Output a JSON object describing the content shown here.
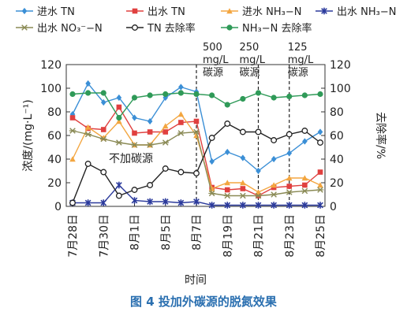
{
  "chart_data": {
    "type": "line",
    "x_labels": [
      "7月28日",
      "7月30日",
      "8月1日",
      "8月5日",
      "8月7日",
      "8月19日",
      "8月21日",
      "8月23日",
      "8月25日"
    ],
    "x_tick_positions": [
      0,
      2,
      4,
      6,
      8,
      10,
      12,
      14,
      16
    ],
    "y_left": {
      "label": "浓度/(mg·L⁻¹)",
      "ylim": [
        0,
        120
      ],
      "ticks": [
        0,
        20,
        40,
        60,
        80,
        100,
        120
      ]
    },
    "y_right": {
      "label": "去除率/%",
      "ylim": [
        0,
        120
      ],
      "ticks": [
        0,
        20,
        40,
        60,
        80,
        100,
        120
      ]
    },
    "xlabel": "时间",
    "legend_position": "top",
    "series": [
      {
        "name": "进水 TN",
        "axis": "left",
        "color": "#3b8fd6",
        "marker": "diamond",
        "x": [
          0,
          1,
          2,
          3,
          4,
          5,
          6,
          7,
          8,
          9,
          10,
          11,
          12,
          13,
          14,
          15,
          16
        ],
        "y": [
          78,
          104,
          88,
          92,
          75,
          72,
          92,
          101,
          97,
          38,
          46,
          41,
          30,
          40,
          45,
          55,
          63
        ]
      },
      {
        "name": "出水 TN",
        "axis": "left",
        "color": "#e0403f",
        "marker": "square",
        "x": [
          0,
          1,
          2,
          3,
          4,
          5,
          6,
          7,
          8,
          9,
          10,
          11,
          12,
          13,
          14,
          15,
          16
        ],
        "y": [
          75,
          66,
          65,
          84,
          62,
          63,
          63,
          71,
          72,
          16,
          14,
          15,
          9,
          16,
          17,
          18,
          29
        ]
      },
      {
        "name": "进水 NH₃−N",
        "axis": "left",
        "color": "#f3a640",
        "marker": "triangle",
        "x": [
          0,
          1,
          2,
          3,
          4,
          5,
          6,
          7,
          8,
          9,
          10,
          11,
          12,
          13,
          14,
          15,
          16
        ],
        "y": [
          40,
          67,
          58,
          72,
          52,
          52,
          68,
          78,
          60,
          15,
          20,
          20,
          12,
          18,
          24,
          24,
          18
        ]
      },
      {
        "name": "出水 NH₃−N",
        "axis": "left",
        "color": "#2b3a9c",
        "marker": "star",
        "x": [
          0,
          1,
          2,
          3,
          4,
          5,
          6,
          7,
          8,
          9,
          10,
          11,
          12,
          13,
          14,
          15,
          16
        ],
        "y": [
          3,
          3,
          3,
          18,
          5,
          4,
          4,
          3,
          4,
          1,
          1,
          1,
          1,
          1,
          1,
          1,
          1
        ]
      },
      {
        "name": "出水 NO₃⁻−N",
        "axis": "left",
        "color": "#8a8a55",
        "marker": "cross",
        "x": [
          0,
          1,
          2,
          3,
          4,
          5,
          6,
          7,
          8,
          9,
          10,
          11,
          12,
          13,
          14,
          15,
          16
        ],
        "y": [
          64,
          61,
          57,
          54,
          52,
          52,
          54,
          62,
          63,
          11,
          9,
          9,
          9,
          10,
          12,
          13,
          14
        ]
      },
      {
        "name": "TN 去除率",
        "axis": "right",
        "color": "#222222",
        "marker": "circle-open",
        "x": [
          0,
          1,
          2,
          3,
          4,
          5,
          6,
          7,
          8,
          9,
          10,
          11,
          12,
          13,
          14,
          15,
          16
        ],
        "y": [
          3,
          36,
          29,
          9,
          14,
          18,
          32,
          29,
          28,
          58,
          70,
          63,
          63,
          56,
          61,
          64,
          54
        ]
      },
      {
        "name": "NH₃−N 去除率",
        "axis": "right",
        "color": "#2f9a58",
        "marker": "circle-filled",
        "x": [
          0,
          1,
          2,
          3,
          4,
          5,
          6,
          7,
          8,
          9,
          10,
          11,
          12,
          13,
          14,
          15,
          16
        ],
        "y": [
          95,
          96,
          96,
          75,
          92,
          94,
          95,
          96,
          95,
          94,
          86,
          91,
          96,
          92,
          93,
          94,
          95
        ]
      }
    ],
    "annotations": [
      {
        "text": "不加碳源"
      },
      {
        "text": [
          "500",
          "mg/L",
          "碳源"
        ]
      },
      {
        "text": [
          "250",
          "mg/L",
          "碳源"
        ]
      },
      {
        "text": [
          "125",
          "mg/L",
          "碳源"
        ]
      }
    ],
    "dividers_at_x": [
      8,
      12,
      14
    ]
  },
  "caption": "图 4   投加外碳源的脱氮效果"
}
